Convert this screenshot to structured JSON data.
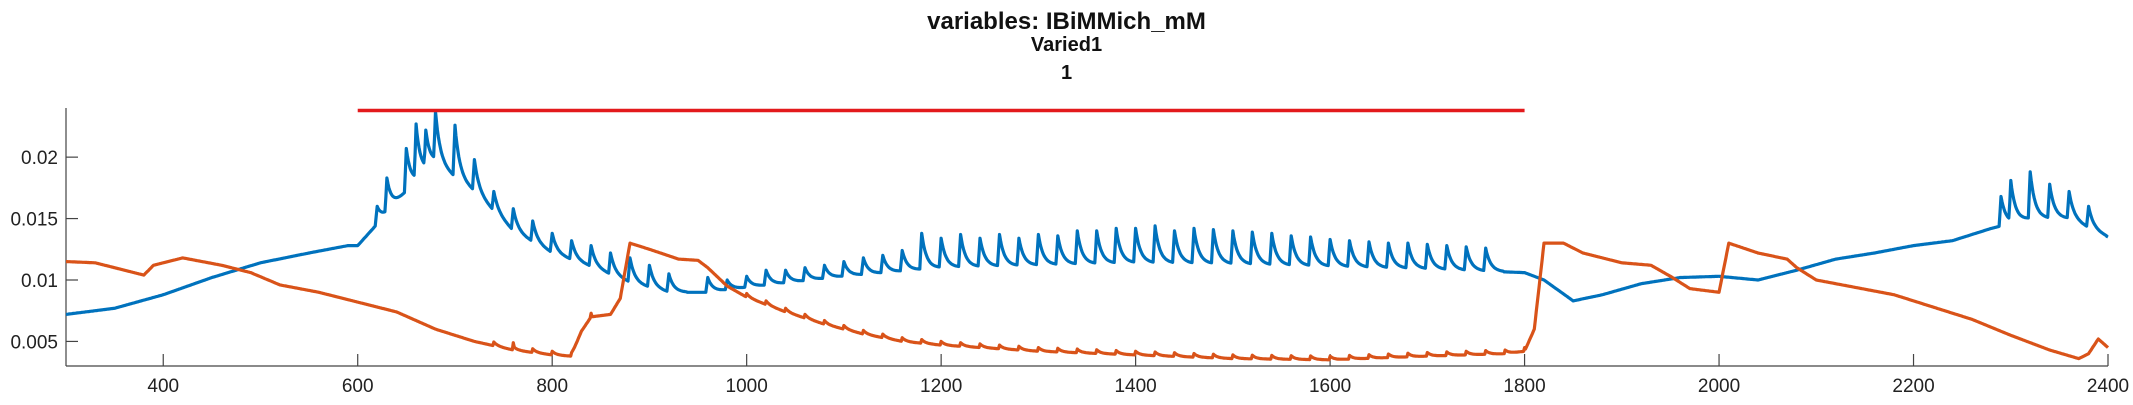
{
  "chart_data": {
    "type": "line",
    "title": "variables: IBiMMich_mM",
    "subtitle": "Varied1",
    "subtitle2": "1",
    "xlabel": "",
    "ylabel": "",
    "xlim": [
      300,
      2400
    ],
    "ylim": [
      0.003,
      0.024
    ],
    "x_ticks": [
      400,
      600,
      800,
      1000,
      1200,
      1400,
      1600,
      1800,
      2000,
      2200,
      2400
    ],
    "y_ticks": [
      0.005,
      0.01,
      0.015,
      0.02
    ],
    "y_tick_labels": [
      "0.005",
      "0.01",
      "0.015",
      "0.02"
    ],
    "grid": false,
    "series": [
      {
        "color": "#0072BD",
        "role": "blue trace",
        "baseline": [
          [
            300,
            0.0072
          ],
          [
            350,
            0.0077
          ],
          [
            400,
            0.0088
          ],
          [
            450,
            0.0102
          ],
          [
            500,
            0.0114
          ],
          [
            550,
            0.0122
          ],
          [
            590,
            0.0128
          ],
          [
            600,
            0.0128
          ],
          [
            650,
            0.0172
          ],
          [
            680,
            0.0195
          ],
          [
            720,
            0.0172
          ],
          [
            760,
            0.014
          ],
          [
            800,
            0.0122
          ],
          [
            840,
            0.0111
          ],
          [
            880,
            0.0098
          ],
          [
            920,
            0.009
          ],
          [
            960,
            0.009
          ],
          [
            1000,
            0.0094
          ],
          [
            1100,
            0.0103
          ],
          [
            1200,
            0.011
          ],
          [
            1300,
            0.0112
          ],
          [
            1400,
            0.0114
          ],
          [
            1500,
            0.0113
          ],
          [
            1600,
            0.0111
          ],
          [
            1700,
            0.0109
          ],
          [
            1800,
            0.0106
          ],
          [
            1820,
            0.01
          ],
          [
            1850,
            0.0083
          ],
          [
            1880,
            0.0088
          ],
          [
            1920,
            0.0097
          ],
          [
            1960,
            0.0102
          ],
          [
            2000,
            0.0103
          ],
          [
            2040,
            0.01
          ],
          [
            2080,
            0.0108
          ],
          [
            2120,
            0.0117
          ],
          [
            2160,
            0.0122
          ],
          [
            2200,
            0.0128
          ],
          [
            2240,
            0.0132
          ],
          [
            2280,
            0.0142
          ],
          [
            2320,
            0.015
          ],
          [
            2360,
            0.015
          ],
          [
            2400,
            0.0135
          ]
        ],
        "spikes": [
          [
            620,
            0.016
          ],
          [
            630,
            0.0183
          ],
          [
            650,
            0.0207
          ],
          [
            660,
            0.0227
          ],
          [
            670,
            0.0222
          ],
          [
            680,
            0.0237
          ],
          [
            700,
            0.0226
          ],
          [
            720,
            0.0198
          ],
          [
            740,
            0.0172
          ],
          [
            760,
            0.0158
          ],
          [
            780,
            0.0148
          ],
          [
            800,
            0.0138
          ],
          [
            820,
            0.0132
          ],
          [
            840,
            0.0128
          ],
          [
            860,
            0.0122
          ],
          [
            880,
            0.0118
          ],
          [
            900,
            0.0112
          ],
          [
            920,
            0.0105
          ],
          [
            960,
            0.0102
          ],
          [
            980,
            0.01
          ],
          [
            1000,
            0.0103
          ],
          [
            1020,
            0.0108
          ],
          [
            1040,
            0.0108
          ],
          [
            1060,
            0.011
          ],
          [
            1080,
            0.0112
          ],
          [
            1100,
            0.0115
          ],
          [
            1120,
            0.0118
          ],
          [
            1140,
            0.012
          ],
          [
            1160,
            0.0124
          ],
          [
            1180,
            0.0138
          ],
          [
            1200,
            0.0134
          ],
          [
            1220,
            0.0137
          ],
          [
            1240,
            0.0134
          ],
          [
            1260,
            0.0137
          ],
          [
            1280,
            0.0134
          ],
          [
            1300,
            0.0137
          ],
          [
            1320,
            0.0136
          ],
          [
            1340,
            0.014
          ],
          [
            1360,
            0.014
          ],
          [
            1380,
            0.0142
          ],
          [
            1400,
            0.0142
          ],
          [
            1420,
            0.0144
          ],
          [
            1440,
            0.014
          ],
          [
            1460,
            0.0142
          ],
          [
            1480,
            0.0141
          ],
          [
            1500,
            0.014
          ],
          [
            1520,
            0.0139
          ],
          [
            1540,
            0.0138
          ],
          [
            1560,
            0.0136
          ],
          [
            1580,
            0.0135
          ],
          [
            1600,
            0.0133
          ],
          [
            1620,
            0.0132
          ],
          [
            1640,
            0.0131
          ],
          [
            1660,
            0.013
          ],
          [
            1680,
            0.013
          ],
          [
            1700,
            0.0129
          ],
          [
            1720,
            0.0128
          ],
          [
            1740,
            0.0127
          ],
          [
            1760,
            0.0126
          ],
          [
            2290,
            0.0168
          ],
          [
            2300,
            0.0181
          ],
          [
            2320,
            0.0188
          ],
          [
            2340,
            0.0178
          ],
          [
            2360,
            0.0172
          ],
          [
            2380,
            0.016
          ]
        ]
      },
      {
        "color": "#D95319",
        "role": "orange trace",
        "baseline": [
          [
            300,
            0.0115
          ],
          [
            330,
            0.0114
          ],
          [
            360,
            0.0108
          ],
          [
            380,
            0.0104
          ],
          [
            390,
            0.0112
          ],
          [
            420,
            0.0118
          ],
          [
            460,
            0.0112
          ],
          [
            490,
            0.0106
          ],
          [
            520,
            0.0096
          ],
          [
            560,
            0.009
          ],
          [
            600,
            0.0082
          ],
          [
            640,
            0.0074
          ],
          [
            680,
            0.006
          ],
          [
            720,
            0.005
          ],
          [
            760,
            0.0043
          ],
          [
            800,
            0.0039
          ],
          [
            820,
            0.0038
          ],
          [
            830,
            0.0058
          ],
          [
            840,
            0.007
          ],
          [
            860,
            0.0072
          ],
          [
            870,
            0.0085
          ],
          [
            880,
            0.013
          ],
          [
            900,
            0.0125
          ],
          [
            930,
            0.0117
          ],
          [
            950,
            0.0116
          ],
          [
            960,
            0.011
          ],
          [
            980,
            0.0095
          ],
          [
            1000,
            0.0086
          ],
          [
            1040,
            0.0074
          ],
          [
            1080,
            0.0064
          ],
          [
            1120,
            0.0056
          ],
          [
            1160,
            0.005
          ],
          [
            1200,
            0.0047
          ],
          [
            1300,
            0.0042
          ],
          [
            1400,
            0.0039
          ],
          [
            1500,
            0.0036
          ],
          [
            1600,
            0.0035
          ],
          [
            1700,
            0.0038
          ],
          [
            1780,
            0.004
          ],
          [
            1800,
            0.0042
          ],
          [
            1810,
            0.006
          ],
          [
            1820,
            0.013
          ],
          [
            1840,
            0.013
          ],
          [
            1860,
            0.0122
          ],
          [
            1900,
            0.0114
          ],
          [
            1930,
            0.0112
          ],
          [
            1950,
            0.0103
          ],
          [
            1970,
            0.0093
          ],
          [
            2000,
            0.009
          ],
          [
            2010,
            0.013
          ],
          [
            2040,
            0.0122
          ],
          [
            2070,
            0.0117
          ],
          [
            2080,
            0.011
          ],
          [
            2100,
            0.01
          ],
          [
            2140,
            0.0094
          ],
          [
            2180,
            0.0088
          ],
          [
            2220,
            0.0078
          ],
          [
            2260,
            0.0068
          ],
          [
            2300,
            0.0055
          ],
          [
            2340,
            0.0043
          ],
          [
            2370,
            0.0036
          ],
          [
            2380,
            0.004
          ],
          [
            2390,
            0.0052
          ],
          [
            2400,
            0.0045
          ]
        ],
        "wiggles": [
          [
            740,
            760,
            0.0033
          ],
          [
            760,
            840,
            0.0034
          ],
          [
            1000,
            1800,
            0.0035
          ]
        ]
      }
    ],
    "annotations": [
      {
        "type": "horizontal-line",
        "color": "#E31A1C",
        "x_start": 600,
        "x_end": 1800,
        "y": 0.0238
      }
    ]
  }
}
